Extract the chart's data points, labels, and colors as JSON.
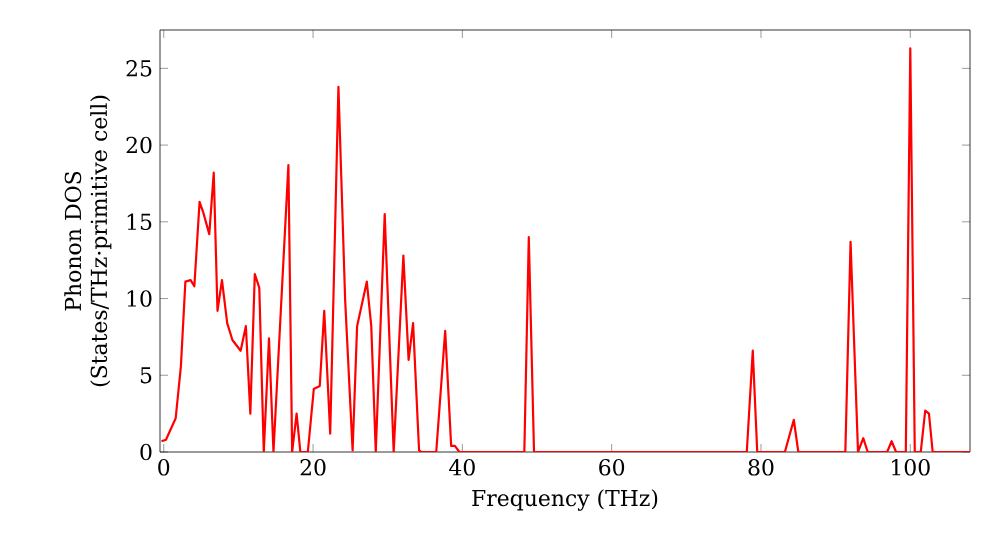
{
  "chart_data": {
    "type": "line",
    "xlabel": "Frequency (THz)",
    "ylabel": "Phonon DOS (States/THz·primitive cell)",
    "xlim": [
      -0.5,
      108
    ],
    "ylim": [
      0,
      27.5
    ],
    "xticks": [
      0,
      20,
      40,
      60,
      80,
      100
    ],
    "yticks": [
      0,
      5,
      10,
      15,
      20,
      25
    ],
    "grid": false,
    "marker": "none",
    "line_style": "solid",
    "series": [
      {
        "color": "#ff0000",
        "x": [
          -0.3,
          0.3,
          1.6,
          2.3,
          2.9,
          3.6,
          4.1,
          4.8,
          5.3,
          6.1,
          6.7,
          7.2,
          7.8,
          8.5,
          9.2,
          10.3,
          11.0,
          11.6,
          12.2,
          12.8,
          13.4,
          14.1,
          14.7,
          16.7,
          17.2,
          17.8,
          18.3,
          19.3,
          20.1,
          20.9,
          21.5,
          22.3,
          23.4,
          24.3,
          25.3,
          25.9,
          27.2,
          27.8,
          28.4,
          29.6,
          30.8,
          32.1,
          32.8,
          33.4,
          34.2,
          34.5,
          36.5,
          37.7,
          38.5,
          39.0,
          39.6,
          48.3,
          48.9,
          49.6,
          78.1,
          78.9,
          79.5,
          83.2,
          84.4,
          85.0,
          91.3,
          92.0,
          93.0,
          93.7,
          94.3,
          96.9,
          97.5,
          98.1,
          99.4,
          100.0,
          100.6,
          101.4,
          102.0,
          102.5,
          103.0,
          108
        ],
        "values": [
          0.7,
          0.8,
          2.2,
          5.6,
          11.1,
          11.2,
          10.8,
          16.3,
          15.6,
          14.2,
          18.2,
          9.2,
          11.2,
          8.4,
          7.3,
          6.6,
          8.2,
          2.5,
          11.6,
          10.7,
          0,
          7.4,
          0,
          18.7,
          0,
          2.5,
          0,
          0,
          4.1,
          4.3,
          9.2,
          1.2,
          23.8,
          9.9,
          0.1,
          8.2,
          11.1,
          8.2,
          0,
          15.5,
          0,
          12.8,
          6.0,
          8.4,
          0.1,
          0,
          0,
          7.9,
          0.4,
          0.4,
          0,
          0,
          14.0,
          0,
          0,
          6.6,
          0,
          0,
          2.1,
          0,
          0,
          13.7,
          0,
          0.9,
          0,
          0,
          0.7,
          0,
          0,
          26.3,
          0,
          0,
          2.7,
          2.5,
          0,
          0
        ]
      }
    ]
  }
}
